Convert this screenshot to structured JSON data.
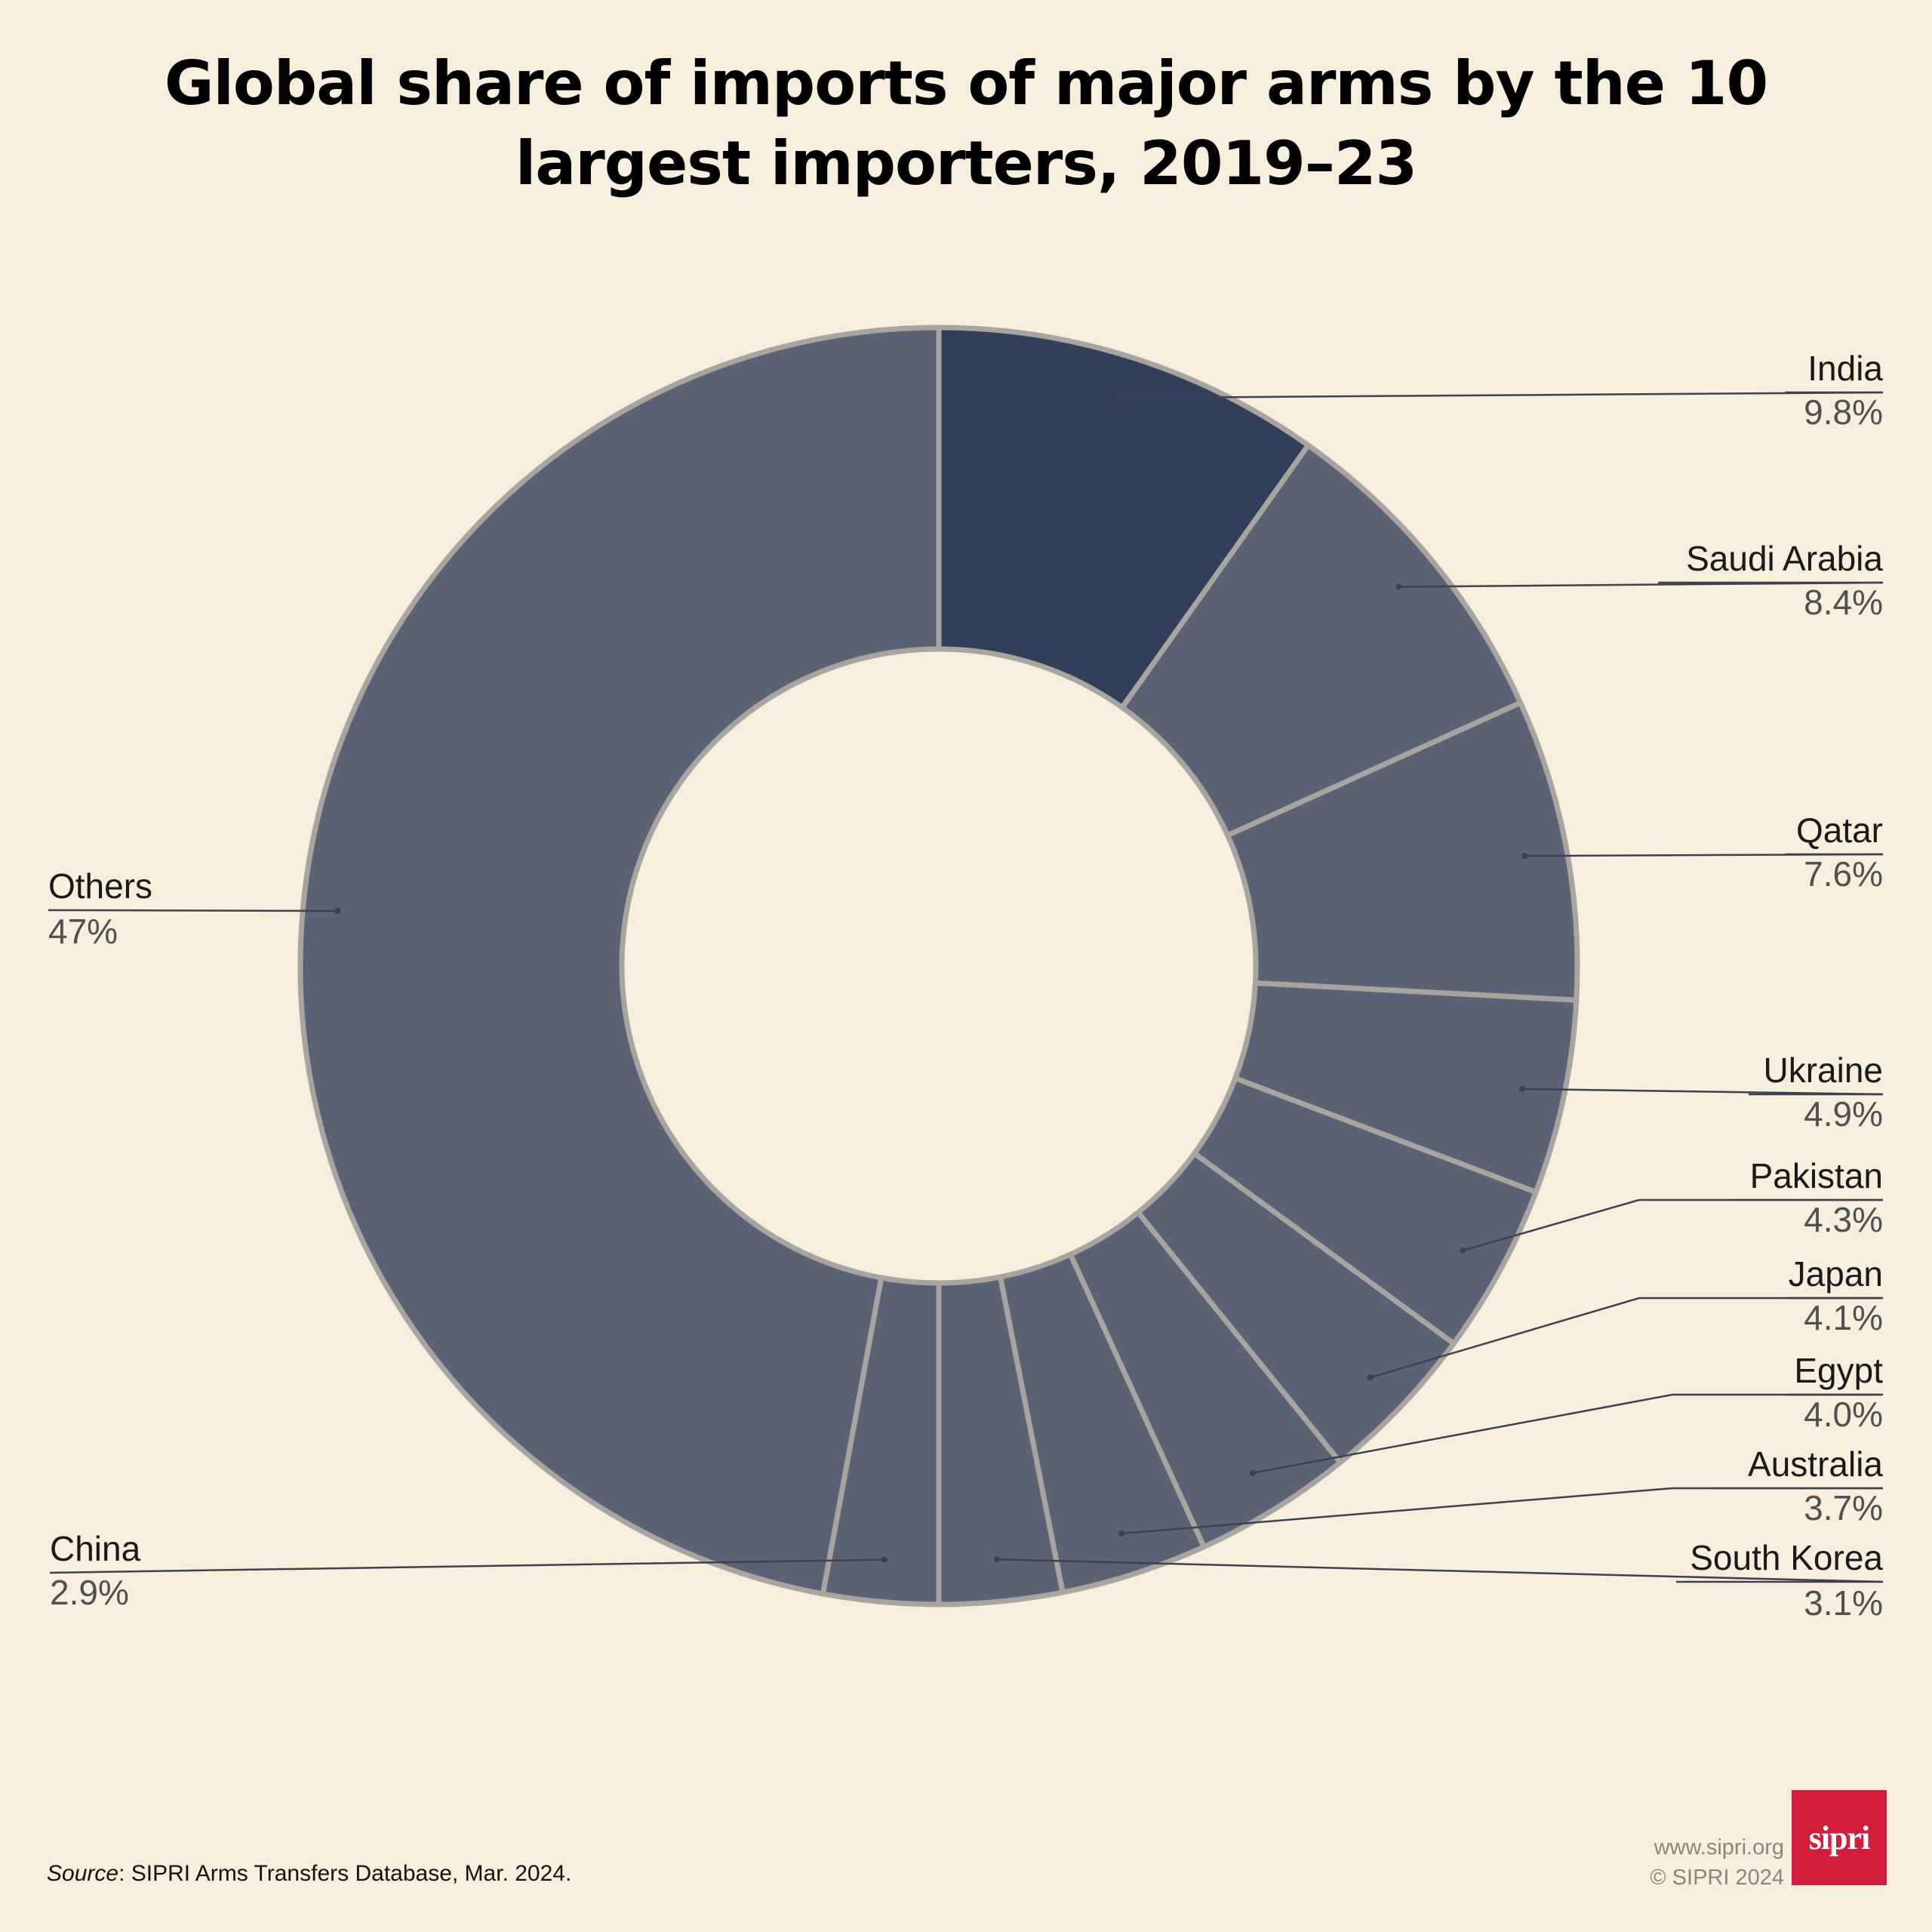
{
  "chart_data": {
    "type": "pie",
    "title": "Global share of imports of major arms by the 10 largest importers, 2019–23",
    "unit": "%",
    "categories": [
      "India",
      "Saudi Arabia",
      "Qatar",
      "Ukraine",
      "Pakistan",
      "Japan",
      "Egypt",
      "Australia",
      "South Korea",
      "China",
      "Others"
    ],
    "values": [
      9.8,
      8.4,
      7.6,
      4.9,
      4.3,
      4.1,
      4.0,
      3.7,
      3.1,
      2.9,
      47
    ],
    "value_labels": [
      "9.8%",
      "8.4%",
      "7.6%",
      "4.9%",
      "4.3%",
      "4.1%",
      "4.0%",
      "3.7%",
      "3.1%",
      "2.9%",
      "47%"
    ],
    "highlight": "India",
    "donut": true,
    "colors": {
      "highlight": "#313f5b",
      "slice": "#5a6276",
      "slice_border": "#a8a4a0",
      "background": "#f8eedc"
    }
  },
  "footer": {
    "source_label": "Source",
    "source_text": ": SIPRI Arms Transfers Database, Mar. 2024.",
    "url": "www.sipri.org",
    "copyright": "© SIPRI 2024",
    "logo_text": "sipri"
  }
}
